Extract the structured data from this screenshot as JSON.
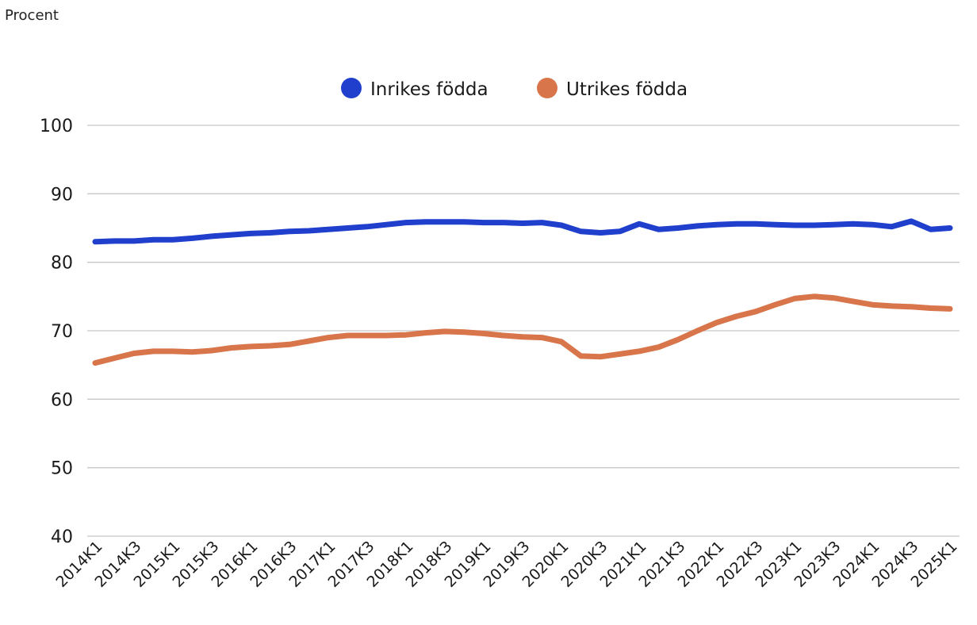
{
  "unit_label": "Procent",
  "chart_data": {
    "type": "line",
    "ylabel": "Procent",
    "ylim": [
      40,
      100
    ],
    "yticks": [
      40,
      50,
      60,
      70,
      80,
      90,
      100
    ],
    "grid": true,
    "legend_position": "top-center",
    "x": [
      "2014K1",
      "2014K2",
      "2014K3",
      "2014K4",
      "2015K1",
      "2015K2",
      "2015K3",
      "2015K4",
      "2016K1",
      "2016K2",
      "2016K3",
      "2016K4",
      "2017K1",
      "2017K2",
      "2017K3",
      "2017K4",
      "2018K1",
      "2018K2",
      "2018K3",
      "2018K4",
      "2019K1",
      "2019K2",
      "2019K3",
      "2019K4",
      "2020K1",
      "2020K2",
      "2020K3",
      "2020K4",
      "2021K1",
      "2021K2",
      "2021K3",
      "2021K4",
      "2022K1",
      "2022K2",
      "2022K3",
      "2022K4",
      "2023K1",
      "2023K2",
      "2023K3",
      "2023K4",
      "2024K1",
      "2024K2",
      "2024K3",
      "2024K4",
      "2025K1"
    ],
    "xtick_labels": [
      "2014K1",
      "2014K3",
      "2015K1",
      "2015K3",
      "2016K1",
      "2016K3",
      "2017K1",
      "2017K3",
      "2018K1",
      "2018K3",
      "2019K1",
      "2019K3",
      "2020K1",
      "2020K3",
      "2021K1",
      "2021K3",
      "2022K1",
      "2022K3",
      "2023K1",
      "2023K3",
      "2024K1",
      "2024K3",
      "2025K1"
    ],
    "series": [
      {
        "name": "Inrikes födda",
        "color": "#1f3fcc",
        "values": [
          83.0,
          83.1,
          83.1,
          83.3,
          83.3,
          83.5,
          83.8,
          84.0,
          84.2,
          84.3,
          84.5,
          84.6,
          84.8,
          85.0,
          85.2,
          85.5,
          85.8,
          85.9,
          85.9,
          85.9,
          85.8,
          85.8,
          85.7,
          85.8,
          85.4,
          84.5,
          84.3,
          84.5,
          85.6,
          84.8,
          85.0,
          85.3,
          85.5,
          85.6,
          85.6,
          85.5,
          85.4,
          85.4,
          85.5,
          85.6,
          85.5,
          85.2,
          86.0,
          84.8,
          85.0
        ]
      },
      {
        "name": "Utrikes födda",
        "color": "#d8754a",
        "values": [
          65.3,
          66.0,
          66.7,
          67.0,
          67.0,
          66.9,
          67.1,
          67.5,
          67.7,
          67.8,
          68.0,
          68.5,
          69.0,
          69.3,
          69.3,
          69.3,
          69.4,
          69.7,
          69.9,
          69.8,
          69.6,
          69.3,
          69.1,
          69.0,
          68.4,
          66.3,
          66.2,
          66.6,
          67.0,
          67.6,
          68.7,
          70.0,
          71.2,
          72.1,
          72.8,
          73.8,
          74.7,
          75.0,
          74.8,
          74.3,
          73.8,
          73.6,
          73.5,
          73.3,
          73.2
        ]
      }
    ]
  }
}
